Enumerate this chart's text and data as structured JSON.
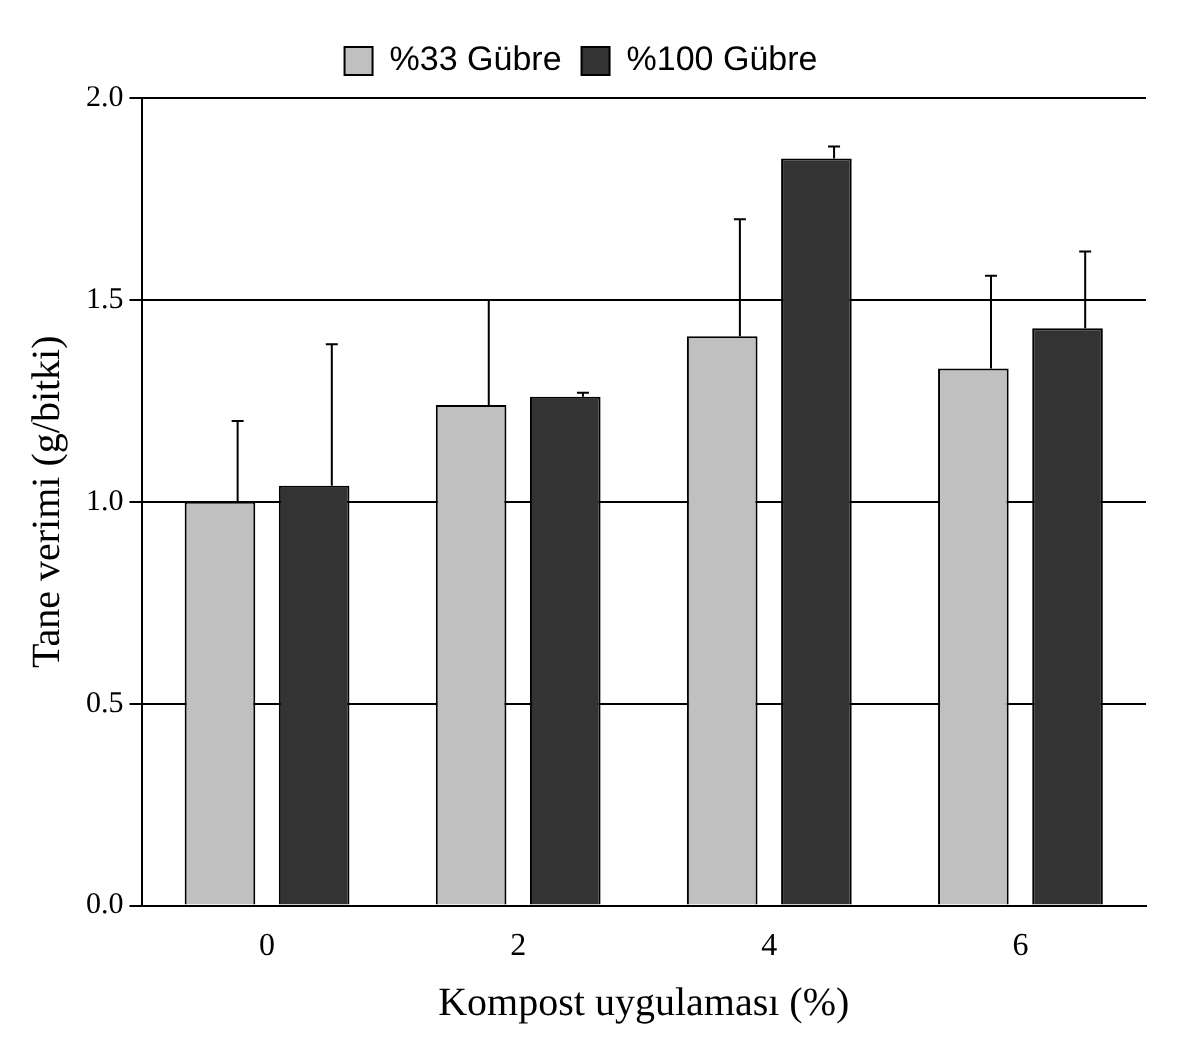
{
  "chart_data": {
    "type": "bar",
    "xlabel": "Kompost uygulaması (%)",
    "ylabel": "Tane verimi (g/bitki)",
    "categories": [
      "0",
      "2",
      "4",
      "6"
    ],
    "series": [
      {
        "name": "%33 Gübre",
        "color": "#c0c0c0",
        "values": [
          1.0,
          1.24,
          1.41,
          1.33
        ],
        "errors": [
          [
            1.0,
            1.2
          ],
          [
            1.24,
            1.5
          ],
          [
            1.41,
            1.7
          ],
          [
            1.33,
            1.56
          ]
        ]
      },
      {
        "name": "%100 Gübre",
        "color": "#333333",
        "values": [
          1.04,
          1.26,
          1.85,
          1.43
        ],
        "errors": [
          [
            1.04,
            1.39
          ],
          [
            1.26,
            1.27
          ],
          [
            1.85,
            1.88
          ],
          [
            1.43,
            1.62
          ]
        ]
      }
    ],
    "ylim": [
      0,
      2.0
    ],
    "yticks": [
      {
        "value": 0,
        "label": "0.0"
      },
      {
        "value": 0.5,
        "label": "0.5"
      },
      {
        "value": 1.0,
        "label": "1.0"
      },
      {
        "value": 1.5,
        "label": "1.5"
      },
      {
        "value": 2.0,
        "label": "2.0"
      }
    ],
    "grid": "y",
    "legend": "top"
  }
}
